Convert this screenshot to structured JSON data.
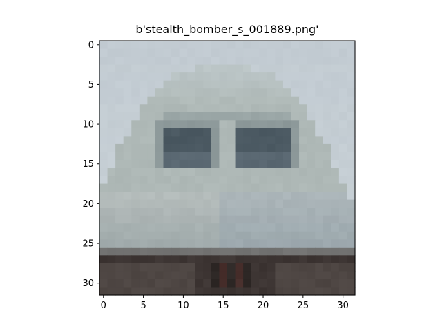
{
  "figure": {
    "title": "b'stealth_bomber_s_001889.png'"
  },
  "image": {
    "description_grid_size": [
      32,
      32
    ],
    "palette": {
      "sky": "#c2cbd2",
      "sky_light": "#c8d1d6",
      "fuselage": "#aeb8b6",
      "fuselage_dark": "#9aa6a6",
      "cockpit_frame": "#8c9899",
      "window": "#5a6872",
      "window_dark": "#4b5962",
      "belly": "#b4bcbb",
      "belly_shadow": "#9ea8a9",
      "ground": "#4e4643",
      "ground_dark": "#3d3533",
      "wheel": "#2e2826",
      "wheel_red": "#5a3430"
    }
  },
  "axes": {
    "x_ticks": [
      "0",
      "5",
      "10",
      "15",
      "20",
      "25",
      "30"
    ],
    "y_ticks": [
      "0",
      "5",
      "10",
      "15",
      "20",
      "25",
      "30"
    ],
    "x_range": [
      -0.5,
      31.5
    ],
    "y_range": [
      -0.5,
      31.5
    ]
  }
}
